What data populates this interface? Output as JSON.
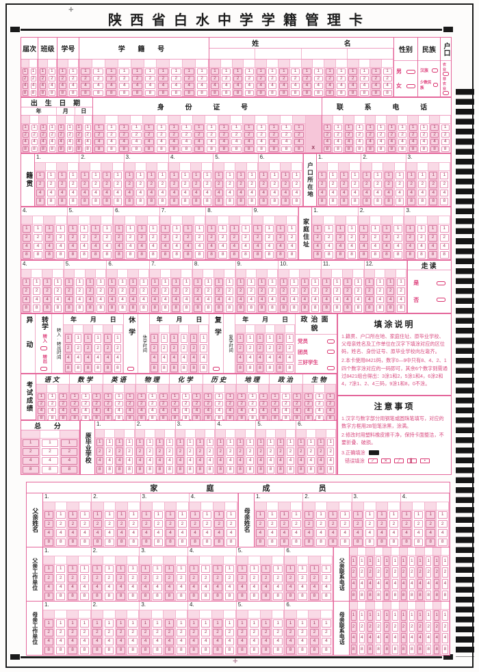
{
  "page": {
    "title": "陕西省白水中学学籍管理卡",
    "cross_mark": "+",
    "colors": {
      "shade": "#f6c6d9",
      "border": "#e4659a",
      "accent_text": "#d9326e",
      "black": "#1a1a1a"
    }
  },
  "marks": {
    "digits": [
      "1",
      "2",
      "4",
      "8"
    ],
    "x_digit": "X"
  },
  "section1": {
    "fields": [
      {
        "label": "届次",
        "cols": 2
      },
      {
        "label": "班级",
        "cols": 2
      },
      {
        "label": "学号",
        "cols": 2
      },
      {
        "label": "学 籍 号",
        "cols": 10
      },
      {
        "label_a": "姓",
        "label_b": "名",
        "cols": 16
      }
    ],
    "side": [
      {
        "label": "性别",
        "options": [
          "男",
          "女"
        ]
      },
      {
        "label": "民族",
        "options": [
          "汉族",
          "少数民族"
        ]
      },
      {
        "label": "户口",
        "options": [
          "农业",
          "非农业"
        ]
      }
    ]
  },
  "section2": {
    "birth": {
      "label": "出 生 日 期",
      "subs": [
        {
          "label": "年",
          "cols": 4
        },
        {
          "label": "月",
          "cols": 2
        },
        {
          "label": "日",
          "cols": 2
        }
      ]
    },
    "idcard": {
      "label": "身 份 证 号",
      "cols": 17
    },
    "phone": {
      "label": "联 系 电 话",
      "cols": 12
    }
  },
  "addr": {
    "jiguan_label": "籍贯",
    "hukou_label": "户口所在地",
    "jiating_label": "家庭住址",
    "rows": [
      {
        "left_areas": [
          1,
          2,
          3,
          4,
          5,
          6
        ],
        "right_areas": [
          1,
          2,
          3
        ]
      },
      {
        "left_areas": [
          4,
          5,
          6,
          7,
          8,
          9
        ],
        "right_areas": [
          1,
          2,
          3
        ]
      },
      {
        "left_areas": [
          4,
          5,
          6,
          7,
          8,
          9,
          10,
          11,
          12
        ]
      }
    ],
    "zoudu": {
      "label": "走读",
      "options": [
        "是",
        "否"
      ]
    }
  },
  "yidong": {
    "label": "异动",
    "zhuanxue": {
      "label": "转学",
      "options": [
        "转入",
        "转出"
      ]
    },
    "groups": [
      {
        "time_label": "转入·转出时间",
        "date": [
          "年",
          "月",
          "日"
        ]
      },
      {
        "pre_label": "休学",
        "time_label": "休学时间",
        "date": [
          "年",
          "月",
          "日"
        ]
      },
      {
        "pre_label": "复学",
        "time_label": "复学时间",
        "date": [
          "年",
          "月",
          "日"
        ]
      }
    ],
    "zhengzhi": {
      "label": "政治面貌",
      "options": [
        "党员",
        "团员",
        "三好学生"
      ]
    }
  },
  "scores": {
    "label": "考试成绩",
    "subjects": [
      "语文",
      "数学",
      "英语",
      "物理",
      "化学",
      "历史",
      "地理",
      "政治",
      "生物"
    ],
    "cols_per_subject": 3
  },
  "total_row": {
    "zongfen": {
      "label": "总 分",
      "cols": 3
    },
    "school": {
      "label": "原毕业学校",
      "areas": [
        1,
        2,
        3,
        4,
        5,
        6
      ]
    }
  },
  "instructions": {
    "title": "填涂说明",
    "lines": [
      "1.籍贯、户口所在地、家庭住址、原毕业学校、父母亲姓名及工作单位在汉字下填涂对应的区位码，姓名、身份证号、原毕业学校向左靠齐。",
      "2.本卡使用8421码，数字0—9中只有8、4、2、1四个数字涂对应的一码即可，其余6个数字则需通过8421组合得出：3涂1和2，5涂1和4，6涂2和4，7涂1、2、4三码，9涂1和8，0不涂。"
    ]
  },
  "notes": {
    "title": "注意事项",
    "lines": [
      "1.汉字与数字部分用钢笔或圆珠笔填写，对应的数字方框用2B铅笔涂黑，涂满。",
      "2.修改时用塑料橡皮擦干净，保持卡面整洁，不要折叠、破损。"
    ],
    "correct_label": "3.正确填涂",
    "wrong_label": "错误填涂",
    "wrong_marks": [
      "✓",
      "✕",
      "╱",
      "▌",
      "•"
    ]
  },
  "family": {
    "title": "家 庭 成 员",
    "father_name": {
      "label": "父亲姓名",
      "areas": [
        1,
        2,
        3,
        4
      ]
    },
    "mother_name": {
      "label": "母亲姓名",
      "areas": [
        1,
        2,
        3,
        4
      ]
    },
    "father_work": {
      "label": "父亲工作单位",
      "areas": [
        1,
        2,
        3,
        4,
        5,
        6
      ]
    },
    "father_phone": {
      "label": "父亲联系电话",
      "cols": 12
    },
    "mother_work": {
      "label": "母亲工作单位",
      "areas": [
        1,
        2,
        3,
        4,
        5,
        6
      ]
    },
    "mother_phone": {
      "label": "母亲联系电话",
      "cols": 12
    }
  }
}
